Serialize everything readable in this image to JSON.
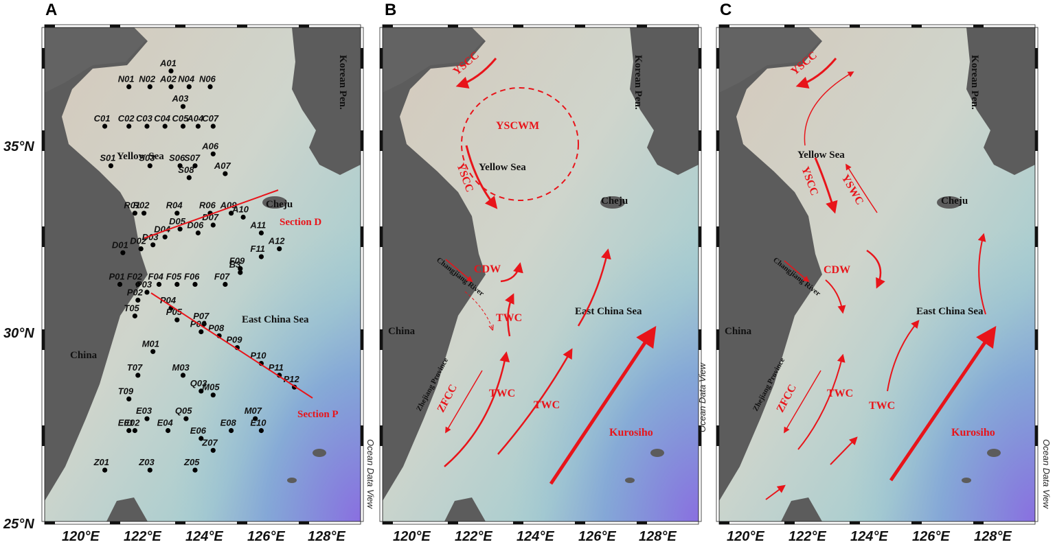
{
  "panels": [
    {
      "letter": "A"
    },
    {
      "letter": "B"
    },
    {
      "letter": "C"
    }
  ],
  "axes": {
    "lon_ticks": [
      "120°E",
      "122°E",
      "124°E",
      "126°E",
      "128°E"
    ],
    "lat_ticks": [
      "35°N",
      "30°N",
      "25°N"
    ]
  },
  "places": {
    "korea": "Korean Pen.",
    "yellow_sea": "Yellow Sea",
    "east_china_sea": "East China Sea",
    "cheju": "Cheju",
    "china": "China",
    "changjiang": "Changjiang River",
    "zhejiang": "Zhejiang Province"
  },
  "sections": {
    "d": "Section D",
    "p": "Section P"
  },
  "currents": {
    "yscc": "YSCC",
    "yscwm": "YSCWM",
    "cdw": "CDW",
    "twc": "TWC",
    "kuroshio": "Kurosiho",
    "zfcc": "ZFCC",
    "yswc": "YSWC"
  },
  "watermark": "Ocean Data View",
  "stations": [
    {
      "name": "A01",
      "lon": 123.2,
      "lat": 36.4
    },
    {
      "name": "N01",
      "lon": 121.8,
      "lat": 36.0
    },
    {
      "name": "N02",
      "lon": 122.5,
      "lat": 36.0
    },
    {
      "name": "A02",
      "lon": 123.2,
      "lat": 36.0
    },
    {
      "name": "N04",
      "lon": 123.8,
      "lat": 36.0
    },
    {
      "name": "N06",
      "lon": 124.5,
      "lat": 36.0
    },
    {
      "name": "A03",
      "lon": 123.6,
      "lat": 35.5
    },
    {
      "name": "C01",
      "lon": 121.0,
      "lat": 35.0
    },
    {
      "name": "C02",
      "lon": 121.8,
      "lat": 35.0
    },
    {
      "name": "C03",
      "lon": 122.4,
      "lat": 35.0
    },
    {
      "name": "C04",
      "lon": 123.0,
      "lat": 35.0
    },
    {
      "name": "C05",
      "lon": 123.6,
      "lat": 35.0
    },
    {
      "name": "A04",
      "lon": 124.1,
      "lat": 35.0
    },
    {
      "name": "C07",
      "lon": 124.6,
      "lat": 35.0
    },
    {
      "name": "A06",
      "lon": 124.6,
      "lat": 34.3
    },
    {
      "name": "S01",
      "lon": 121.2,
      "lat": 34.0
    },
    {
      "name": "S03",
      "lon": 122.5,
      "lat": 34.0
    },
    {
      "name": "S06",
      "lon": 123.5,
      "lat": 34.0
    },
    {
      "name": "S07",
      "lon": 124.0,
      "lat": 34.0
    },
    {
      "name": "A07",
      "lon": 125.0,
      "lat": 33.8
    },
    {
      "name": "S08",
      "lon": 123.8,
      "lat": 33.7
    },
    {
      "name": "R01",
      "lon": 122.0,
      "lat": 32.8
    },
    {
      "name": "R02",
      "lon": 122.3,
      "lat": 32.8
    },
    {
      "name": "R04",
      "lon": 123.4,
      "lat": 32.8
    },
    {
      "name": "R06",
      "lon": 124.5,
      "lat": 32.8
    },
    {
      "name": "A09",
      "lon": 125.2,
      "lat": 32.8
    },
    {
      "name": "A10",
      "lon": 125.6,
      "lat": 32.7
    },
    {
      "name": "D05",
      "lon": 123.5,
      "lat": 32.4
    },
    {
      "name": "D04",
      "lon": 123.0,
      "lat": 32.2
    },
    {
      "name": "D07",
      "lon": 124.6,
      "lat": 32.5
    },
    {
      "name": "D03",
      "lon": 122.6,
      "lat": 32.0
    },
    {
      "name": "D02",
      "lon": 122.2,
      "lat": 31.9
    },
    {
      "name": "D06",
      "lon": 124.1,
      "lat": 32.3
    },
    {
      "name": "A11",
      "lon": 126.2,
      "lat": 32.3
    },
    {
      "name": "D01",
      "lon": 121.6,
      "lat": 31.8
    },
    {
      "name": "A12",
      "lon": 126.8,
      "lat": 31.9
    },
    {
      "name": "F11",
      "lon": 126.2,
      "lat": 31.7
    },
    {
      "name": "F09",
      "lon": 125.5,
      "lat": 31.4
    },
    {
      "name": "B3",
      "lon": 125.5,
      "lat": 31.3
    },
    {
      "name": "F07",
      "lon": 125.0,
      "lat": 31.0
    },
    {
      "name": "P01",
      "lon": 121.5,
      "lat": 31.0
    },
    {
      "name": "F02",
      "lon": 122.1,
      "lat": 31.0
    },
    {
      "name": "F04",
      "lon": 122.8,
      "lat": 31.0
    },
    {
      "name": "F05",
      "lon": 123.4,
      "lat": 31.0
    },
    {
      "name": "F06",
      "lon": 124.0,
      "lat": 31.0
    },
    {
      "name": "P03",
      "lon": 122.4,
      "lat": 30.8
    },
    {
      "name": "P02",
      "lon": 122.1,
      "lat": 30.6
    },
    {
      "name": "P04",
      "lon": 123.2,
      "lat": 30.4
    },
    {
      "name": "T05",
      "lon": 122.0,
      "lat": 30.2
    },
    {
      "name": "P05",
      "lon": 123.4,
      "lat": 30.1
    },
    {
      "name": "P07",
      "lon": 124.3,
      "lat": 30.0
    },
    {
      "name": "P06",
      "lon": 124.2,
      "lat": 29.8
    },
    {
      "name": "P08",
      "lon": 124.8,
      "lat": 29.7
    },
    {
      "name": "P09",
      "lon": 125.4,
      "lat": 29.4
    },
    {
      "name": "M01",
      "lon": 122.6,
      "lat": 29.3
    },
    {
      "name": "P10",
      "lon": 126.2,
      "lat": 29.0
    },
    {
      "name": "T07",
      "lon": 122.1,
      "lat": 28.7
    },
    {
      "name": "M03",
      "lon": 123.6,
      "lat": 28.7
    },
    {
      "name": "P11",
      "lon": 126.8,
      "lat": 28.7
    },
    {
      "name": "P12",
      "lon": 127.3,
      "lat": 28.4
    },
    {
      "name": "Q03",
      "lon": 124.2,
      "lat": 28.3
    },
    {
      "name": "M05",
      "lon": 124.6,
      "lat": 28.2
    },
    {
      "name": "T09",
      "lon": 121.8,
      "lat": 28.1
    },
    {
      "name": "M07",
      "lon": 126.0,
      "lat": 27.6
    },
    {
      "name": "E03",
      "lon": 122.4,
      "lat": 27.6
    },
    {
      "name": "Q05",
      "lon": 123.7,
      "lat": 27.6
    },
    {
      "name": "E01",
      "lon": 121.8,
      "lat": 27.3
    },
    {
      "name": "E02",
      "lon": 122.0,
      "lat": 27.3
    },
    {
      "name": "E04",
      "lon": 123.1,
      "lat": 27.3
    },
    {
      "name": "E08",
      "lon": 125.2,
      "lat": 27.3
    },
    {
      "name": "E10",
      "lon": 126.2,
      "lat": 27.3
    },
    {
      "name": "E06",
      "lon": 124.2,
      "lat": 27.1
    },
    {
      "name": "Z07",
      "lon": 124.6,
      "lat": 26.8
    },
    {
      "name": "Z01",
      "lon": 121.0,
      "lat": 26.3
    },
    {
      "name": "Z03",
      "lon": 122.5,
      "lat": 26.3
    },
    {
      "name": "Z05",
      "lon": 124.0,
      "lat": 26.3
    }
  ]
}
